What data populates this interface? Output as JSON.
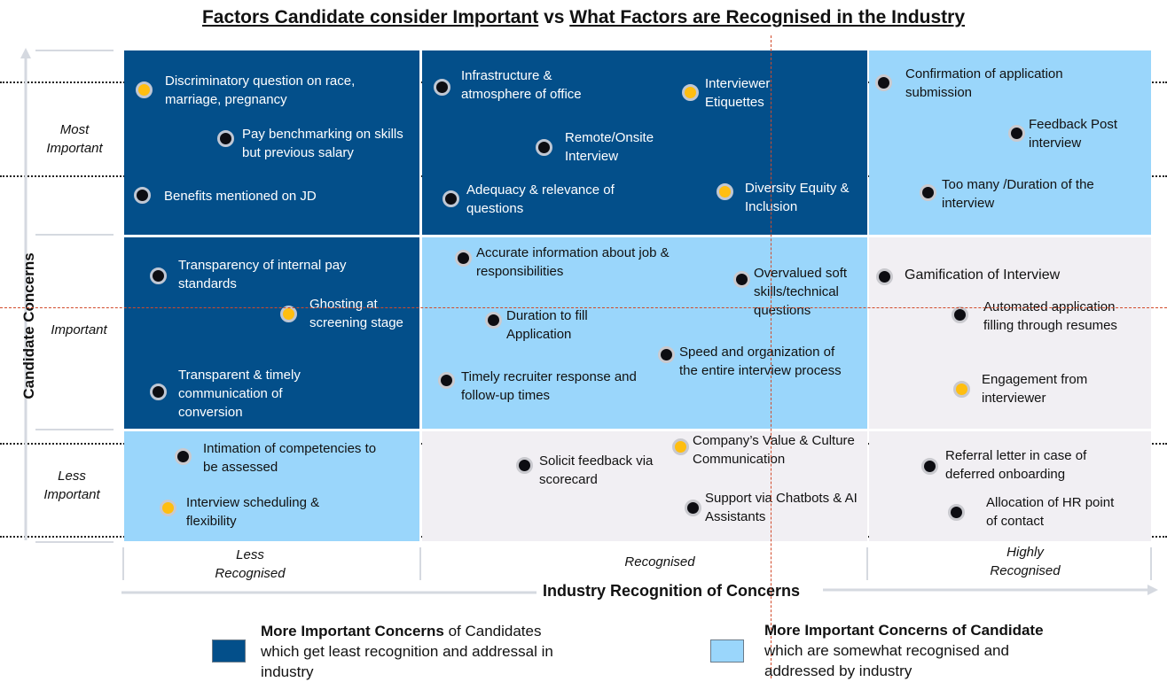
{
  "title": {
    "part1": "Factors Candidate consider Important",
    "vs": "vs",
    "part2": "What Factors are Recognised in the Industry"
  },
  "axes": {
    "y_label": "Candidate Concerns",
    "x_label": "Industry Recognition of Concerns"
  },
  "rows": {
    "most": "Most Important",
    "important": "Important",
    "less": "Less Important"
  },
  "cols": {
    "less": "Less Recognised",
    "recognised": "Recognised",
    "highly": "Highly Recognised"
  },
  "cells": {
    "c11": [
      {
        "text": "Discriminatory question on race, marriage, pregnancy",
        "marker": "yellow"
      },
      {
        "text": "Pay benchmarking on skills but previous salary",
        "marker": "black"
      },
      {
        "text": "Benefits mentioned on JD",
        "marker": "black"
      }
    ],
    "c12": [
      {
        "text": "Infrastructure & atmosphere of office",
        "marker": "black"
      },
      {
        "text": "Interviewer Etiquettes",
        "marker": "yellow"
      },
      {
        "text": "Remote/Onsite Interview",
        "marker": "black"
      },
      {
        "text": "Adequacy & relevance of questions",
        "marker": "black"
      },
      {
        "text": "Diversity Equity & Inclusion",
        "marker": "yellow"
      }
    ],
    "c13": [
      {
        "text": "Confirmation of application submission",
        "marker": "black"
      },
      {
        "text": "Feedback Post interview",
        "marker": "black"
      },
      {
        "text": "Too many /Duration of the interview",
        "marker": "black"
      }
    ],
    "c21": [
      {
        "text": "Transparency of internal pay standards",
        "marker": "black"
      },
      {
        "text": "Ghosting at screening stage",
        "marker": "yellow"
      },
      {
        "text": "Transparent & timely communication of conversion",
        "marker": "black"
      }
    ],
    "c22": [
      {
        "text": "Accurate information about job & responsibilities",
        "marker": "black"
      },
      {
        "text": "Overvalued soft skills/technical questions",
        "marker": "black"
      },
      {
        "text": "Duration to fill Application",
        "marker": "black"
      },
      {
        "text": "Speed and organization of the entire interview process",
        "marker": "black"
      },
      {
        "text": "Timely recruiter response and follow-up times",
        "marker": "black"
      }
    ],
    "c23": [
      {
        "text": "Gamification of Interview",
        "marker": "black"
      },
      {
        "text": "Automated application filling through resumes",
        "marker": "black"
      },
      {
        "text": "Engagement from interviewer",
        "marker": "yellow"
      }
    ],
    "c31": [
      {
        "text": "Intimation of competencies to be assessed",
        "marker": "black"
      },
      {
        "text": "Interview scheduling & flexibility",
        "marker": "yellow"
      }
    ],
    "c32": [
      {
        "text": "Solicit feedback via scorecard",
        "marker": "black"
      },
      {
        "text": "Company’s Value & Culture Communication",
        "marker": "yellow"
      },
      {
        "text": "Support via Chatbots & AI Assistants",
        "marker": "black"
      }
    ],
    "c33": [
      {
        "text": "Referral letter in case of deferred onboarding",
        "marker": "black"
      },
      {
        "text": "Allocation of HR point of contact",
        "marker": "black"
      }
    ]
  },
  "legend": [
    {
      "bold": "More Important Concerns",
      "rest": " of Candidates which get least recognition and addressal  in industry",
      "color": "#034f8a"
    },
    {
      "bold": "More Important Concerns of Candidate",
      "rest": " which are somewhat recognised and addressed by industry",
      "color": "#9ad6fb"
    }
  ],
  "colors": {
    "dark": "#034f8a",
    "light": "#9ad6fb",
    "pale": "#f1eff3",
    "yellow_marker": "#ffbe10"
  }
}
